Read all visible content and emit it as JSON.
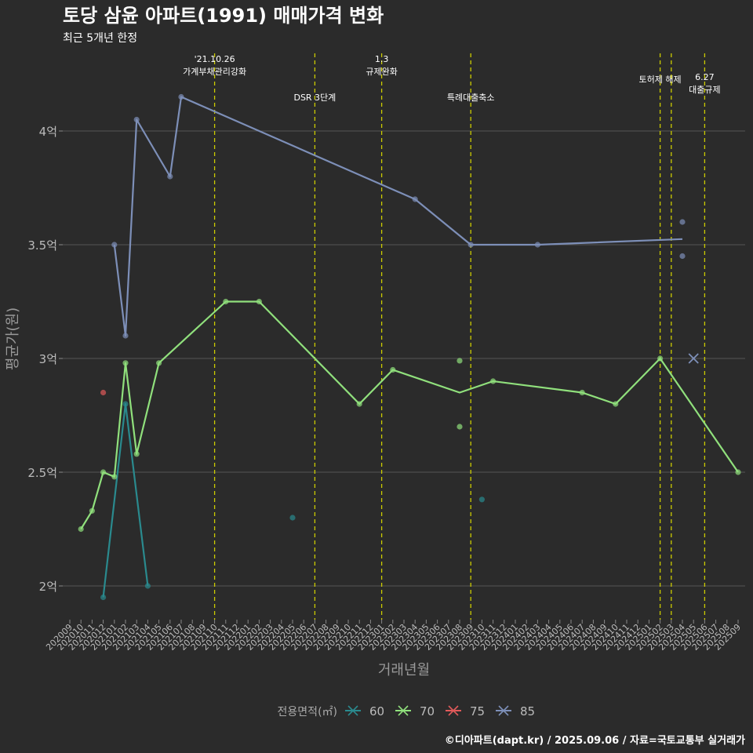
{
  "chart_data": {
    "type": "line",
    "title": "토당 삼윤 아파트(1991) 매매가격 변화",
    "subtitle": "최근 5개년 한정",
    "xlabel": "거래년월",
    "ylabel": "평균가(원)",
    "y_unit": "억",
    "ylim": [
      1.85,
      4.35
    ],
    "y_ticks": [
      2,
      2.5,
      3,
      3.5,
      4
    ],
    "y_tick_labels": [
      "2억",
      "2.5억",
      "3억",
      "3.5억",
      "4억"
    ],
    "x_start": "2020-09",
    "x_end": "2025-09",
    "x_tick_labels": [
      "202009",
      "202010",
      "202011",
      "202012",
      "202101",
      "202102",
      "202103",
      "202104",
      "202105",
      "202106",
      "202107",
      "202108",
      "202109",
      "202110",
      "202111",
      "202112",
      "202201",
      "202202",
      "202203",
      "202204",
      "202205",
      "202206",
      "202207",
      "202208",
      "202209",
      "202210",
      "202211",
      "202212",
      "202301",
      "202302",
      "202303",
      "202304",
      "202305",
      "202306",
      "202307",
      "202308",
      "202309",
      "202310",
      "202311",
      "202312",
      "202401",
      "202402",
      "202403",
      "202404",
      "202405",
      "202406",
      "202407",
      "202408",
      "202409",
      "202410",
      "202411",
      "202412",
      "202501",
      "202502",
      "202503",
      "202504",
      "202505",
      "202506",
      "202507",
      "202508",
      "202509"
    ],
    "legend_title": "전용면적(㎡)",
    "legend_position": "bottom",
    "series": [
      {
        "name": "60",
        "color": "#2a8a8e",
        "line": [
          {
            "x": "2020-12",
            "y": 1.95
          },
          {
            "x": "2021-02",
            "y": 2.8
          },
          {
            "x": "2021-04",
            "y": 2.0
          }
        ],
        "points": [
          {
            "x": "2020-12",
            "y": 1.95
          },
          {
            "x": "2021-02",
            "y": 2.8
          },
          {
            "x": "2021-04",
            "y": 2.0
          },
          {
            "x": "2022-05",
            "y": 2.3
          },
          {
            "x": "2023-10",
            "y": 2.38
          }
        ]
      },
      {
        "name": "70",
        "color": "#90e07c",
        "line": [
          {
            "x": "2020-10",
            "y": 2.25
          },
          {
            "x": "2020-11",
            "y": 2.33
          },
          {
            "x": "2020-12",
            "y": 2.5
          },
          {
            "x": "2021-01",
            "y": 2.48
          },
          {
            "x": "2021-02",
            "y": 2.98
          },
          {
            "x": "2021-03",
            "y": 2.58
          },
          {
            "x": "2021-05",
            "y": 2.98
          },
          {
            "x": "2021-11",
            "y": 3.25
          },
          {
            "x": "2022-02",
            "y": 3.25
          },
          {
            "x": "2022-11",
            "y": 2.8
          },
          {
            "x": "2023-02",
            "y": 2.95
          },
          {
            "x": "2023-08",
            "y": 2.85
          },
          {
            "x": "2023-11",
            "y": 2.9
          },
          {
            "x": "2024-07",
            "y": 2.85
          },
          {
            "x": "2024-10",
            "y": 2.8
          },
          {
            "x": "2025-02",
            "y": 3.0
          },
          {
            "x": "2025-09",
            "y": 2.5
          }
        ],
        "points": [
          {
            "x": "2020-10",
            "y": 2.25
          },
          {
            "x": "2020-11",
            "y": 2.33
          },
          {
            "x": "2020-12",
            "y": 2.5
          },
          {
            "x": "2021-01",
            "y": 2.48
          },
          {
            "x": "2021-02",
            "y": 2.98
          },
          {
            "x": "2021-03",
            "y": 2.58
          },
          {
            "x": "2021-05",
            "y": 2.98
          },
          {
            "x": "2021-11",
            "y": 3.25
          },
          {
            "x": "2022-02",
            "y": 3.25
          },
          {
            "x": "2022-11",
            "y": 2.8
          },
          {
            "x": "2023-02",
            "y": 2.95
          },
          {
            "x": "2023-08",
            "y": 2.99
          },
          {
            "x": "2023-08",
            "y": 2.7
          },
          {
            "x": "2023-11",
            "y": 2.9
          },
          {
            "x": "2024-07",
            "y": 2.85
          },
          {
            "x": "2024-10",
            "y": 2.8
          },
          {
            "x": "2025-02",
            "y": 3.0
          },
          {
            "x": "2025-09",
            "y": 2.5
          }
        ]
      },
      {
        "name": "75",
        "color": "#e05a5a",
        "line": [],
        "points": [
          {
            "x": "2020-12",
            "y": 2.85
          }
        ]
      },
      {
        "name": "85",
        "color": "#7d8fb8",
        "line": [
          {
            "x": "2021-01",
            "y": 3.5
          },
          {
            "x": "2021-02",
            "y": 3.1
          },
          {
            "x": "2021-03",
            "y": 4.05
          },
          {
            "x": "2021-06",
            "y": 3.8
          },
          {
            "x": "2021-07",
            "y": 4.15
          },
          {
            "x": "2023-04",
            "y": 3.7
          },
          {
            "x": "2023-09",
            "y": 3.5
          },
          {
            "x": "2024-03",
            "y": 3.5
          },
          {
            "x": "2025-04",
            "y": 3.525
          }
        ],
        "points": [
          {
            "x": "2021-01",
            "y": 3.5
          },
          {
            "x": "2021-02",
            "y": 3.1
          },
          {
            "x": "2021-03",
            "y": 4.05
          },
          {
            "x": "2021-06",
            "y": 3.8
          },
          {
            "x": "2021-07",
            "y": 4.15
          },
          {
            "x": "2023-04",
            "y": 3.7
          },
          {
            "x": "2023-09",
            "y": 3.5
          },
          {
            "x": "2024-03",
            "y": 3.5
          },
          {
            "x": "2025-04",
            "y": 3.6
          },
          {
            "x": "2025-04",
            "y": 3.45
          }
        ]
      }
    ],
    "markers": [
      {
        "series": "85",
        "x": "2025-05",
        "y": 3.0,
        "symbol": "x"
      }
    ],
    "policy_lines": [
      {
        "x": "2021-10",
        "label": [
          "'21.10.26",
          "가계부채관리강화"
        ],
        "tier": 1
      },
      {
        "x": "2022-07",
        "label": [
          "DSR 3단계"
        ],
        "tier": 2
      },
      {
        "x": "2023-01",
        "label": [
          "1.3",
          "규제완화"
        ],
        "tier": 1
      },
      {
        "x": "2023-09",
        "label": [
          "특례대출축소"
        ],
        "tier": 2
      },
      {
        "x": "2025-02",
        "label": [
          "토허제 해제"
        ],
        "tier": 1
      },
      {
        "x": "2025-03",
        "label": [],
        "tier": 1
      },
      {
        "x": "2025-06",
        "label": [
          "6.27",
          "대출규제"
        ],
        "tier": 2
      }
    ],
    "grid": true,
    "caption": "©디아파트(dapt.kr) / 2025.09.06 / 자료=국토교통부 실거래가"
  },
  "colors": {
    "background": "#2b2b2b",
    "grid": "#555555",
    "policy_line": "#cccc00",
    "text": "#ffffff",
    "axis_text": "#bbbbbb"
  }
}
